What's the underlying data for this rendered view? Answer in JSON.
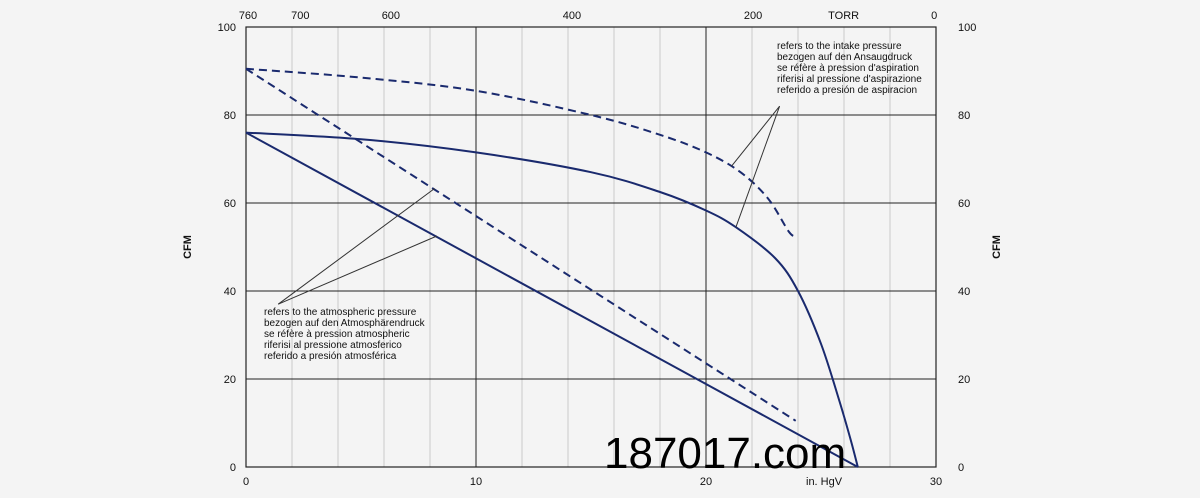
{
  "chart_data": {
    "type": "line",
    "x_axis": {
      "label": "in. HgV",
      "range": [
        0,
        30
      ],
      "ticks": [
        0,
        10,
        20,
        30
      ]
    },
    "y_axis": {
      "label_left": "CFM",
      "label_right": "CFM",
      "range": [
        0,
        100
      ],
      "ticks": [
        0,
        20,
        40,
        60,
        80,
        100
      ]
    },
    "top_axis": {
      "unit_label": "TORR",
      "ticks": [
        "760",
        "700",
        "600",
        "400",
        "200",
        "0"
      ]
    },
    "grid": true,
    "series": [
      {
        "style": "solid",
        "points": [
          [
            0,
            76
          ],
          [
            5,
            74.5
          ],
          [
            10,
            71.5
          ],
          [
            15,
            67
          ],
          [
            18,
            62.5
          ],
          [
            20,
            58.3
          ],
          [
            21.3,
            54.5
          ],
          [
            23,
            47.5
          ],
          [
            24,
            40
          ],
          [
            25,
            28
          ],
          [
            25.8,
            15
          ],
          [
            26.3,
            6
          ],
          [
            26.6,
            0
          ]
        ]
      },
      {
        "style": "dashed",
        "points": [
          [
            0,
            90.5
          ],
          [
            5,
            88.5
          ],
          [
            10,
            85.5
          ],
          [
            15,
            80
          ],
          [
            18,
            75.5
          ],
          [
            20,
            71.5
          ],
          [
            21.5,
            67
          ],
          [
            22.7,
            61
          ],
          [
            23.6,
            53.5
          ],
          [
            23.9,
            52.5
          ]
        ]
      },
      {
        "style": "solid",
        "points": [
          [
            0,
            76
          ],
          [
            26.6,
            0
          ]
        ]
      },
      {
        "style": "dashed",
        "points": [
          [
            0,
            90.5
          ],
          [
            23.9,
            10.5
          ]
        ]
      }
    ],
    "annotations": [
      {
        "lines": [
          "refers to the intake pressure",
          "bezogen auf den Ansaugdruck",
          "se réfère à pression d'aspiration",
          "riferisi al pressione d'aspirazione",
          "referido a presión de aspiracion"
        ]
      },
      {
        "lines": [
          "refers to the atmospheric pressure",
          "bezogen auf den Atmosphärendruck",
          "se réfère à pression atmospheric",
          "riferisi al pressione atmosferico",
          "referido a presión atmosférica"
        ]
      }
    ]
  },
  "watermark": "187017.com"
}
